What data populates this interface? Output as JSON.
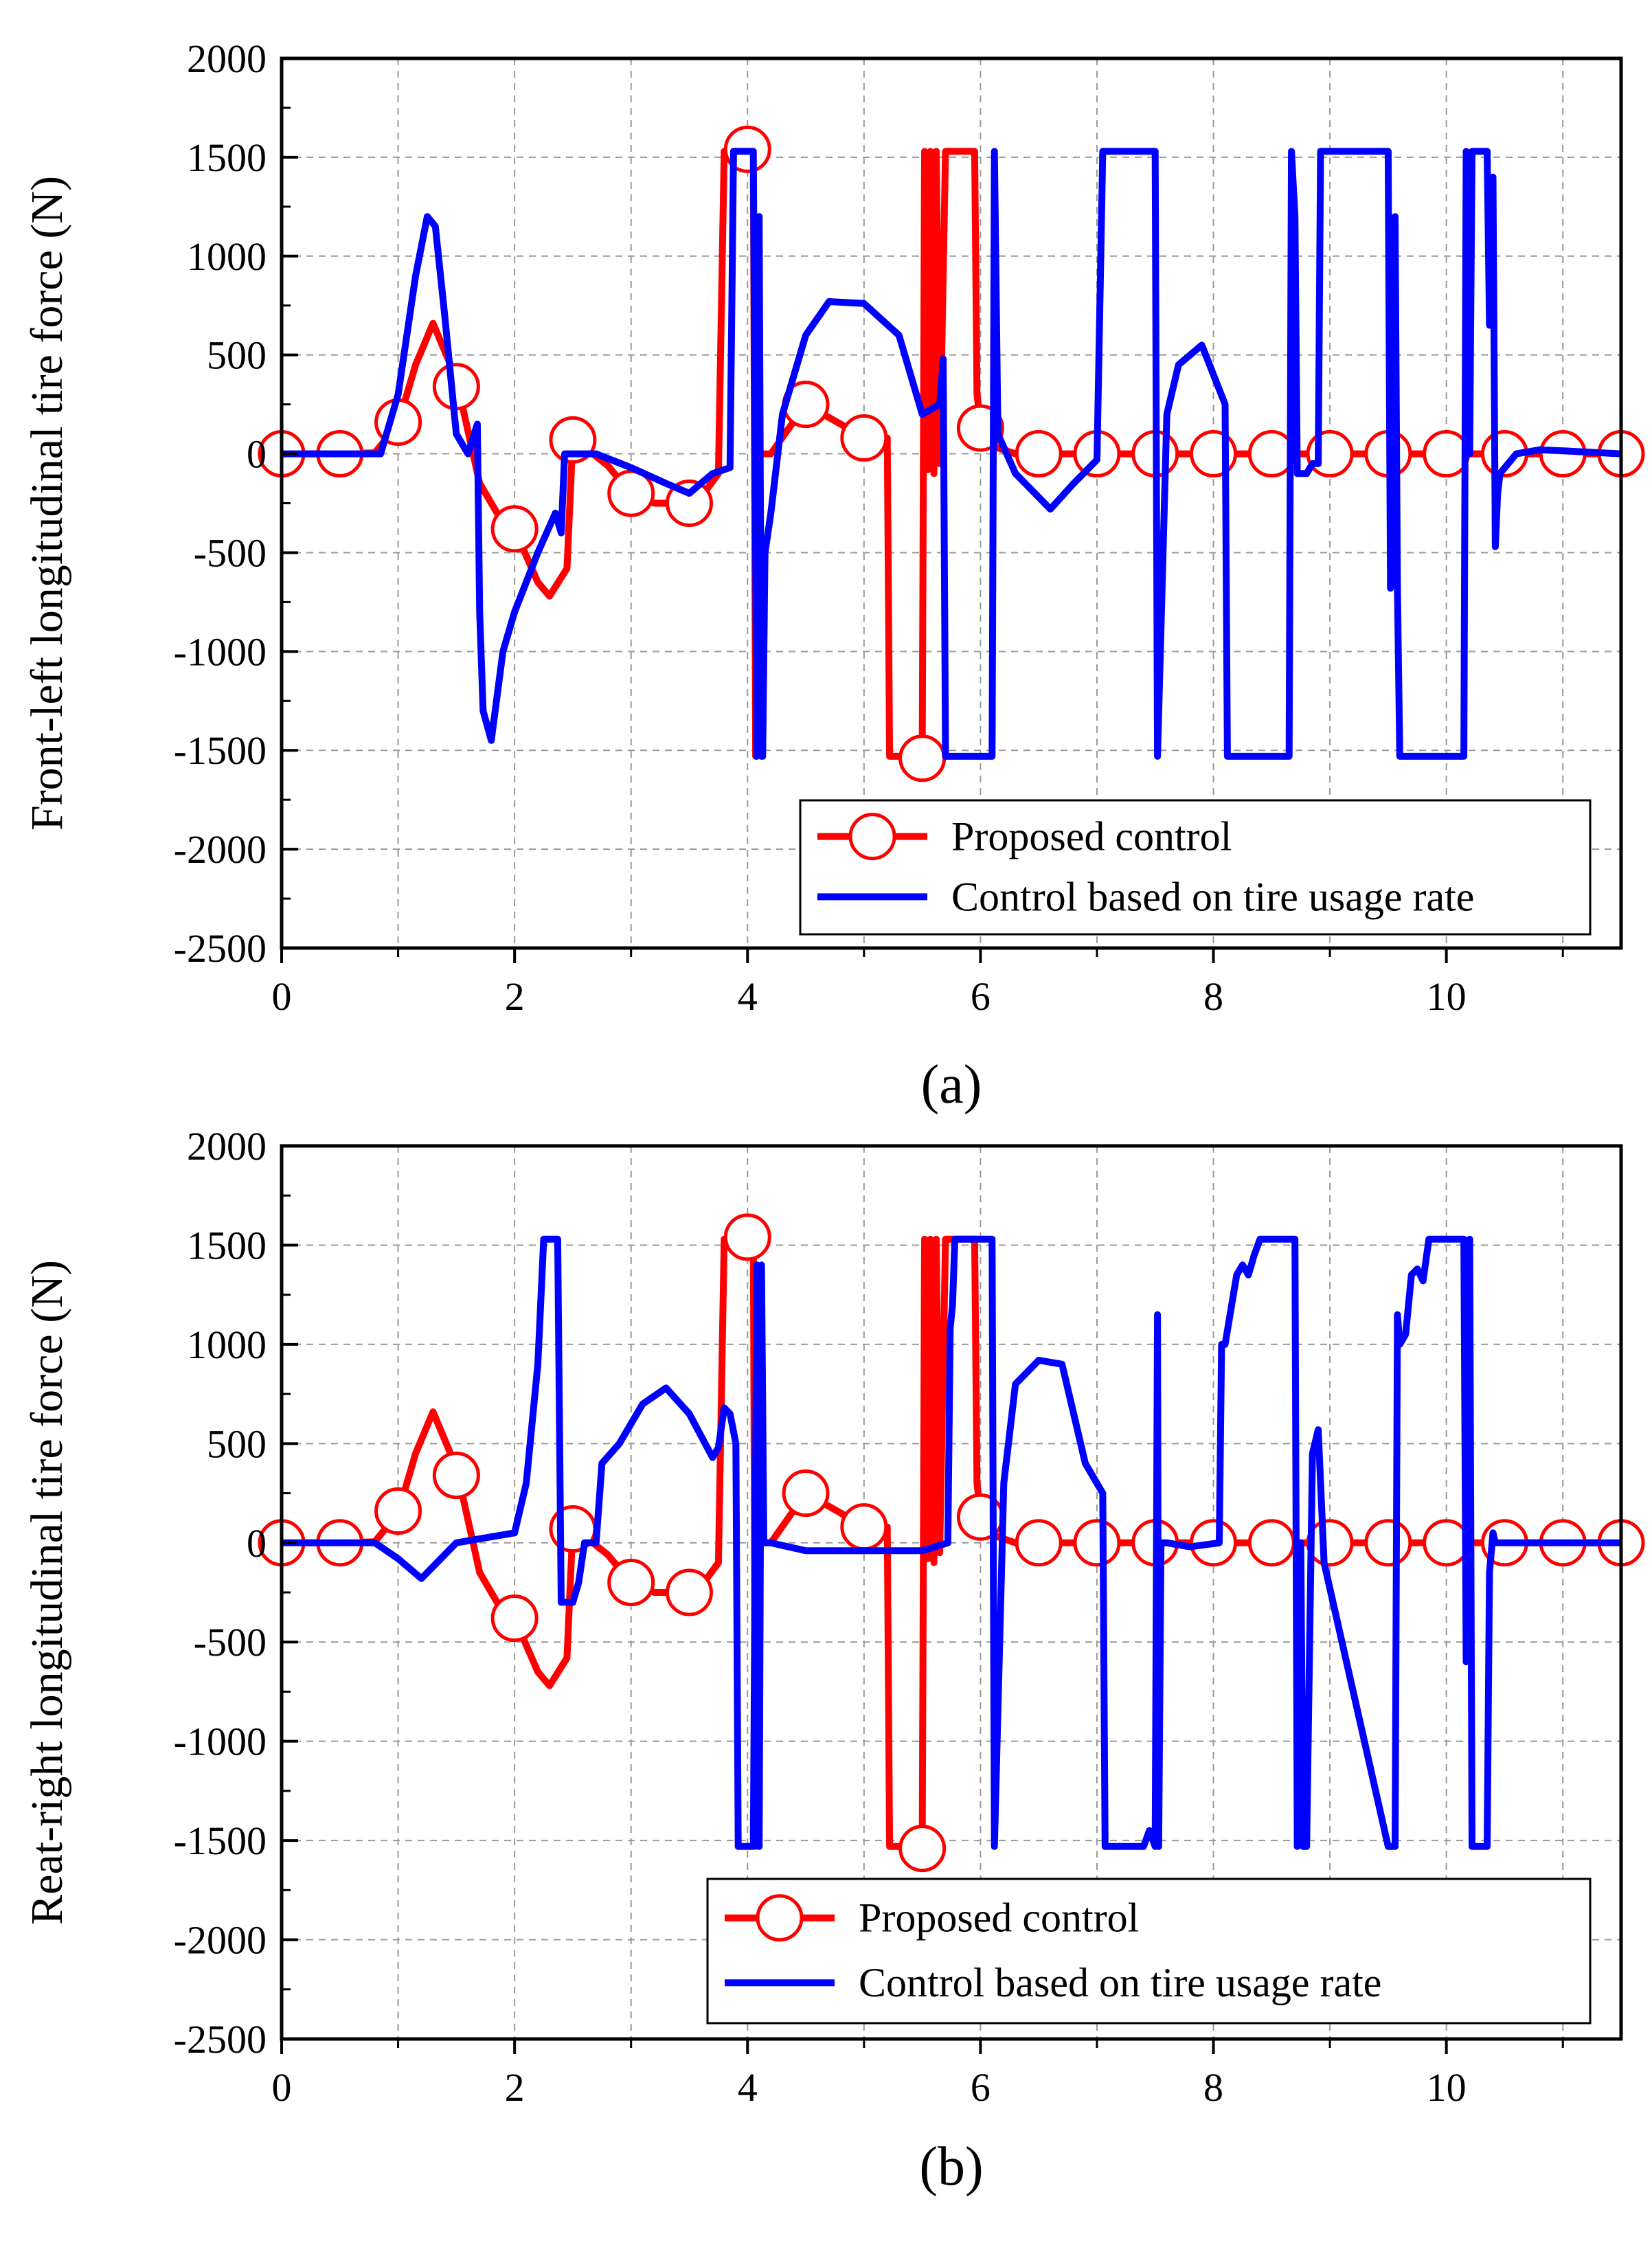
{
  "colors": {
    "proposed": "#ff0000",
    "tire_usage": "#0000ff",
    "grid": "#999999",
    "axis": "#000000"
  },
  "chart_data": [
    {
      "type": "line",
      "panel_label": "(a)",
      "xlabel": "",
      "ylabel": "Front-left longitudinal tire force (N)",
      "xlim": [
        0,
        11.5
      ],
      "ylim": [
        -2500,
        2000
      ],
      "xticks": [
        0,
        2,
        4,
        6,
        8,
        10
      ],
      "xtick_labels": [
        "0",
        "2",
        "4",
        "6",
        "8",
        "10"
      ],
      "yticks": [
        -2500,
        -2000,
        -1500,
        -1000,
        -500,
        0,
        500,
        1000,
        1500,
        2000
      ],
      "ytick_labels": [
        "-2500",
        "-2000",
        "-1500",
        "-1000",
        "-500",
        "0",
        "500",
        "1000",
        "1500",
        "2000"
      ],
      "grid": true,
      "legend_position": "lower-right",
      "series": [
        {
          "name": "Proposed control",
          "key": "proposed",
          "marker": "circle",
          "x": [
            0,
            0.5,
            0.8,
            1.0,
            1.15,
            1.3,
            1.5,
            1.7,
            1.9,
            2.0,
            2.2,
            2.3,
            2.45,
            2.5,
            2.8,
            3.0,
            3.2,
            3.5,
            3.65,
            3.75,
            3.8,
            3.82,
            3.95,
            4.0,
            4.05,
            4.07,
            4.09,
            4.2,
            4.5,
            4.8,
            5.0,
            5.2,
            5.22,
            5.5,
            5.52,
            5.55,
            5.57,
            5.6,
            5.62,
            5.65,
            5.7,
            5.72,
            5.75,
            5.95,
            5.97,
            6.0,
            6.05,
            6.3,
            6.6,
            7.0,
            8.0,
            9.0,
            10.0,
            11.0,
            11.5
          ],
          "y": [
            0,
            0,
            5,
            150,
            450,
            660,
            380,
            -150,
            -350,
            -380,
            -650,
            -720,
            -580,
            80,
            -60,
            -200,
            -250,
            -250,
            -180,
            -100,
            1530,
            1530,
            1530,
            1530,
            1530,
            -1530,
            0,
            0,
            250,
            150,
            80,
            80,
            -1530,
            -1530,
            1530,
            -80,
            1530,
            -100,
            1530,
            -50,
            1530,
            1530,
            1530,
            1530,
            300,
            150,
            50,
            0,
            0,
            0,
            0,
            0,
            0,
            0,
            0
          ],
          "marker_x": [
            0,
            0.5,
            1.0,
            1.5,
            2.0,
            2.5,
            3.0,
            3.5,
            4.0,
            4.5,
            5.0,
            5.5,
            6.0,
            6.5,
            7.0,
            7.5,
            8.0,
            8.5,
            9.0,
            9.5,
            10.0,
            10.5,
            11.0,
            11.5
          ],
          "marker_y": [
            0,
            0,
            160,
            340,
            -380,
            70,
            -200,
            -250,
            1540,
            250,
            80,
            -1540,
            130,
            0,
            0,
            0,
            0,
            0,
            0,
            0,
            0,
            0,
            0,
            0
          ]
        },
        {
          "name": "Control based on tire usage rate",
          "key": "tire_usage",
          "marker": "none",
          "x": [
            0,
            0.85,
            1.0,
            1.15,
            1.25,
            1.32,
            1.4,
            1.5,
            1.6,
            1.68,
            1.7,
            1.73,
            1.8,
            1.9,
            2.0,
            2.2,
            2.35,
            2.4,
            2.43,
            2.47,
            2.55,
            2.7,
            3.0,
            3.3,
            3.5,
            3.7,
            3.85,
            3.88,
            4.05,
            4.08,
            4.1,
            4.12,
            4.13,
            4.15,
            4.2,
            4.3,
            4.5,
            4.7,
            5.0,
            5.3,
            5.5,
            5.65,
            5.68,
            5.7,
            5.72,
            6.1,
            6.12,
            6.15,
            6.3,
            6.6,
            6.8,
            7.0,
            7.05,
            7.07,
            7.5,
            7.52,
            7.6,
            7.7,
            7.9,
            8.1,
            8.12,
            8.65,
            8.67,
            8.7,
            8.72,
            8.8,
            8.85,
            8.9,
            8.92,
            9.5,
            9.52,
            9.56,
            9.58,
            9.6,
            9.62,
            9.64,
            9.66,
            10.15,
            10.17,
            10.2,
            10.22,
            10.35,
            10.37,
            10.4,
            10.42,
            10.44,
            10.46,
            10.6,
            10.8,
            11.0,
            11.5
          ],
          "y": [
            0,
            0,
            300,
            900,
            1200,
            1150,
            700,
            100,
            0,
            150,
            -800,
            -1300,
            -1450,
            -1000,
            -800,
            -500,
            -300,
            -400,
            0,
            0,
            0,
            0,
            -70,
            -150,
            -200,
            -100,
            -70,
            1530,
            1530,
            -1530,
            1200,
            -1530,
            -1530,
            -500,
            -300,
            200,
            600,
            770,
            760,
            600,
            200,
            250,
            480,
            -1530,
            -1530,
            -1530,
            1530,
            100,
            -100,
            -280,
            -150,
            -30,
            1530,
            1530,
            1530,
            -1530,
            200,
            450,
            550,
            250,
            -1530,
            -1530,
            1530,
            1200,
            -100,
            -100,
            -50,
            -50,
            1530,
            1530,
            -680,
            1200,
            -680,
            -1530,
            -1530,
            -1530,
            -1530,
            -1530,
            1530,
            0,
            1530,
            1530,
            650,
            1400,
            -470,
            -200,
            -100,
            0,
            20,
            15,
            0
          ]
        }
      ]
    },
    {
      "type": "line",
      "panel_label": "(b)",
      "xlabel": "",
      "ylabel": "Reat-right longitudinal tire force (N)",
      "xlim": [
        0,
        11.5
      ],
      "ylim": [
        -2500,
        2000
      ],
      "xticks": [
        0,
        2,
        4,
        6,
        8,
        10
      ],
      "xtick_labels": [
        "0",
        "2",
        "4",
        "6",
        "8",
        "10"
      ],
      "yticks": [
        -2500,
        -2000,
        -1500,
        -1000,
        -500,
        0,
        500,
        1000,
        1500,
        2000
      ],
      "ytick_labels": [
        "-2500",
        "-2000",
        "-1500",
        "-1000",
        "-500",
        "0",
        "500",
        "1000",
        "1500",
        "2000"
      ],
      "grid": true,
      "legend_position": "lower-right",
      "series": [
        {
          "name": "Proposed control",
          "key": "proposed",
          "marker": "circle",
          "x": [
            0,
            0.5,
            0.8,
            1.0,
            1.15,
            1.3,
            1.5,
            1.7,
            1.9,
            2.0,
            2.2,
            2.3,
            2.45,
            2.5,
            2.8,
            3.0,
            3.2,
            3.5,
            3.65,
            3.75,
            3.8,
            3.82,
            3.95,
            4.0,
            4.05,
            4.07,
            4.09,
            4.2,
            4.5,
            4.8,
            5.0,
            5.2,
            5.22,
            5.5,
            5.52,
            5.55,
            5.57,
            5.6,
            5.62,
            5.65,
            5.7,
            5.72,
            5.75,
            5.95,
            5.97,
            6.0,
            6.05,
            6.3,
            6.6,
            7.0,
            8.0,
            9.0,
            10.0,
            11.0,
            11.5
          ],
          "y": [
            0,
            0,
            5,
            150,
            450,
            660,
            380,
            -150,
            -350,
            -380,
            -650,
            -720,
            -580,
            80,
            -60,
            -200,
            -250,
            -250,
            -180,
            -100,
            1530,
            1530,
            1530,
            1530,
            1530,
            -1530,
            0,
            0,
            250,
            150,
            80,
            80,
            -1530,
            -1530,
            1530,
            -80,
            1530,
            -100,
            1530,
            -50,
            1530,
            1530,
            1530,
            1530,
            300,
            150,
            50,
            0,
            0,
            0,
            0,
            0,
            0,
            0,
            0
          ],
          "marker_x": [
            0,
            0.5,
            1.0,
            1.5,
            2.0,
            2.5,
            3.0,
            3.5,
            4.0,
            4.5,
            5.0,
            5.5,
            6.0,
            6.5,
            7.0,
            7.5,
            8.0,
            8.5,
            9.0,
            9.5,
            10.0,
            10.5,
            11.0,
            11.5
          ],
          "marker_y": [
            0,
            0,
            160,
            340,
            -380,
            70,
            -200,
            -250,
            1540,
            250,
            80,
            -1540,
            130,
            0,
            0,
            0,
            0,
            0,
            0,
            0,
            0,
            0,
            0,
            0
          ]
        },
        {
          "name": "Control based on tire usage rate",
          "key": "tire_usage",
          "marker": "none",
          "x": [
            0,
            0.8,
            1.0,
            1.2,
            1.5,
            1.8,
            2.0,
            2.1,
            2.2,
            2.25,
            2.37,
            2.4,
            2.5,
            2.55,
            2.6,
            2.7,
            2.75,
            2.9,
            3.1,
            3.3,
            3.5,
            3.7,
            3.75,
            3.8,
            3.85,
            3.9,
            3.92,
            3.95,
            4.05,
            4.08,
            4.1,
            4.12,
            4.14,
            4.2,
            4.5,
            5.0,
            5.5,
            5.72,
            5.74,
            5.76,
            5.78,
            5.8,
            5.9,
            6.1,
            6.12,
            6.2,
            6.3,
            6.5,
            6.7,
            6.9,
            7.05,
            7.07,
            7.4,
            7.45,
            7.5,
            7.52,
            7.53,
            7.55,
            7.57,
            7.6,
            7.8,
            8.05,
            8.07,
            8.1,
            8.2,
            8.25,
            8.3,
            8.35,
            8.4,
            8.45,
            8.7,
            8.72,
            8.75,
            8.77,
            8.8,
            8.85,
            8.9,
            8.95,
            9.5,
            9.52,
            9.56,
            9.58,
            9.6,
            9.65,
            9.7,
            9.75,
            9.8,
            9.85,
            10.15,
            10.17,
            10.2,
            10.22,
            10.35,
            10.37,
            10.4,
            10.42,
            10.5,
            10.6,
            11.0,
            11.5
          ],
          "y": [
            0,
            0,
            -80,
            -180,
            0,
            30,
            50,
            300,
            900,
            1530,
            1530,
            -300,
            -300,
            -200,
            0,
            0,
            400,
            500,
            700,
            780,
            650,
            430,
            480,
            680,
            650,
            500,
            -1530,
            -1530,
            -1530,
            1400,
            -1530,
            1400,
            0,
            0,
            -40,
            -40,
            -40,
            0,
            1080,
            1200,
            1530,
            1530,
            1530,
            1530,
            -1530,
            300,
            800,
            920,
            900,
            400,
            250,
            -1530,
            -1530,
            -1450,
            -1530,
            1150,
            -1530,
            0,
            0,
            0,
            -20,
            0,
            1000,
            1000,
            1350,
            1400,
            1350,
            1450,
            1530,
            1530,
            1530,
            -1530,
            0,
            -1530,
            -1530,
            450,
            570,
            -100,
            -1530,
            -1530,
            -1530,
            1150,
            1000,
            1050,
            1350,
            1380,
            1320,
            1530,
            1530,
            -600,
            1530,
            -1530,
            -1530,
            -150,
            50,
            0,
            0,
            0,
            0,
            0
          ]
        }
      ]
    }
  ]
}
